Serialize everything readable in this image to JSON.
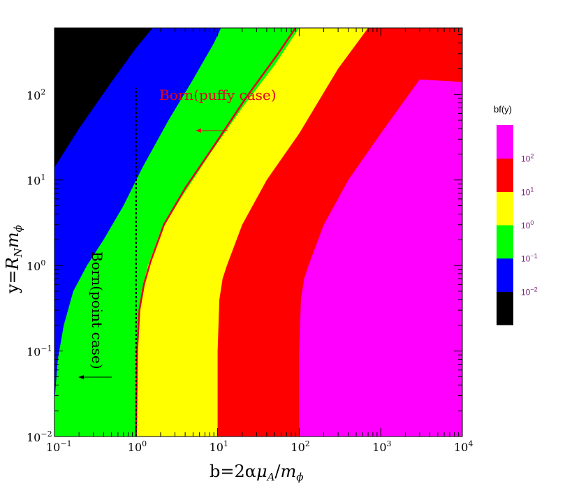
{
  "chart_data": {
    "type": "heatmap",
    "title": "",
    "x_scale": "log",
    "y_scale": "log",
    "xlim": [
      0.1,
      10000
    ],
    "ylim": [
      0.01,
      600
    ],
    "x_ticks": [
      {
        "base": "10",
        "exp": "−1",
        "value": 0.1
      },
      {
        "base": "10",
        "exp": "0",
        "value": 1
      },
      {
        "base": "10",
        "exp": "1",
        "value": 10
      },
      {
        "base": "10",
        "exp": "2",
        "value": 100
      },
      {
        "base": "10",
        "exp": "3",
        "value": 1000
      },
      {
        "base": "10",
        "exp": "4",
        "value": 10000
      }
    ],
    "y_ticks": [
      {
        "base": "10",
        "exp": "−2",
        "value": 0.01
      },
      {
        "base": "10",
        "exp": "−1",
        "value": 0.1
      },
      {
        "base": "10",
        "exp": "0",
        "value": 1
      },
      {
        "base": "10",
        "exp": "1",
        "value": 10
      },
      {
        "base": "10",
        "exp": "2",
        "value": 100
      }
    ],
    "xlabel": "b=2αμ_A/m_ϕ",
    "ylabel": "y=R_N m_ϕ",
    "colorbar": {
      "title": "bf(y)",
      "colors": [
        "#000000",
        "#0000ff",
        "#00ff00",
        "#ffff00",
        "#ff0000",
        "#ff00ff"
      ],
      "labels": [
        {
          "base": "10",
          "exp": "−2"
        },
        {
          "base": "10",
          "exp": "−1"
        },
        {
          "base": "10",
          "exp": "0"
        },
        {
          "base": "10",
          "exp": "1"
        },
        {
          "base": "10",
          "exp": "2"
        }
      ]
    },
    "region_boundaries": [
      {
        "name": "black/blue",
        "points": [
          [
            0.1,
            14
          ],
          [
            0.2,
            40
          ],
          [
            0.5,
            140
          ],
          [
            1.0,
            350
          ],
          [
            1.6,
            600
          ]
        ]
      },
      {
        "name": "blue/green",
        "points": [
          [
            0.1,
            0.01
          ],
          [
            0.1,
            0.025
          ],
          [
            0.11,
            0.08
          ],
          [
            0.13,
            0.2
          ],
          [
            0.17,
            0.5
          ],
          [
            0.25,
            1.0
          ],
          [
            0.4,
            2.0
          ],
          [
            0.7,
            5.0
          ],
          [
            1.2,
            14
          ],
          [
            2.5,
            50
          ],
          [
            5.0,
            150
          ],
          [
            9.0,
            400
          ],
          [
            11,
            600
          ]
        ]
      },
      {
        "name": "green/yellow",
        "points": [
          [
            1.0,
            0.01
          ],
          [
            1.02,
            0.1
          ],
          [
            1.1,
            0.3
          ],
          [
            1.2,
            0.55
          ],
          [
            1.4,
            1.0
          ],
          [
            2.0,
            2.5
          ],
          [
            3.5,
            6.0
          ],
          [
            8.0,
            20
          ],
          [
            20,
            70
          ],
          [
            50,
            220
          ],
          [
            100,
            600
          ]
        ]
      },
      {
        "name": "yellow/red",
        "points": [
          [
            10,
            0.01
          ],
          [
            10,
            0.1
          ],
          [
            10.5,
            0.4
          ],
          [
            11.5,
            0.7
          ],
          [
            13,
            1.0
          ],
          [
            20,
            3.0
          ],
          [
            40,
            10
          ],
          [
            100,
            35
          ],
          [
            300,
            200
          ],
          [
            700,
            600
          ]
        ]
      },
      {
        "name": "red/magenta",
        "points": [
          [
            100,
            0.01
          ],
          [
            100,
            0.1
          ],
          [
            105,
            0.4
          ],
          [
            115,
            0.7
          ],
          [
            130,
            1.0
          ],
          [
            200,
            3.0
          ],
          [
            400,
            10
          ],
          [
            1000,
            35
          ],
          [
            3000,
            150
          ],
          [
            10000,
            140
          ]
        ]
      }
    ],
    "red_curve": {
      "points": [
        [
          1.0,
          0.01
        ],
        [
          1.03,
          0.1
        ],
        [
          1.1,
          0.3
        ],
        [
          1.25,
          0.6
        ],
        [
          1.5,
          1.1
        ],
        [
          2.2,
          3.0
        ],
        [
          4.0,
          8.0
        ],
        [
          9.0,
          25
        ],
        [
          22,
          90
        ],
        [
          55,
          300
        ],
        [
          90,
          600
        ]
      ]
    },
    "dotted_line_x": 1.0,
    "annotations": [
      {
        "text": "Born(puffy case)",
        "color": "#e8001c",
        "arrow": "left"
      },
      {
        "text": "Born(point case)",
        "color": "#000000",
        "arrow": "left"
      }
    ]
  }
}
